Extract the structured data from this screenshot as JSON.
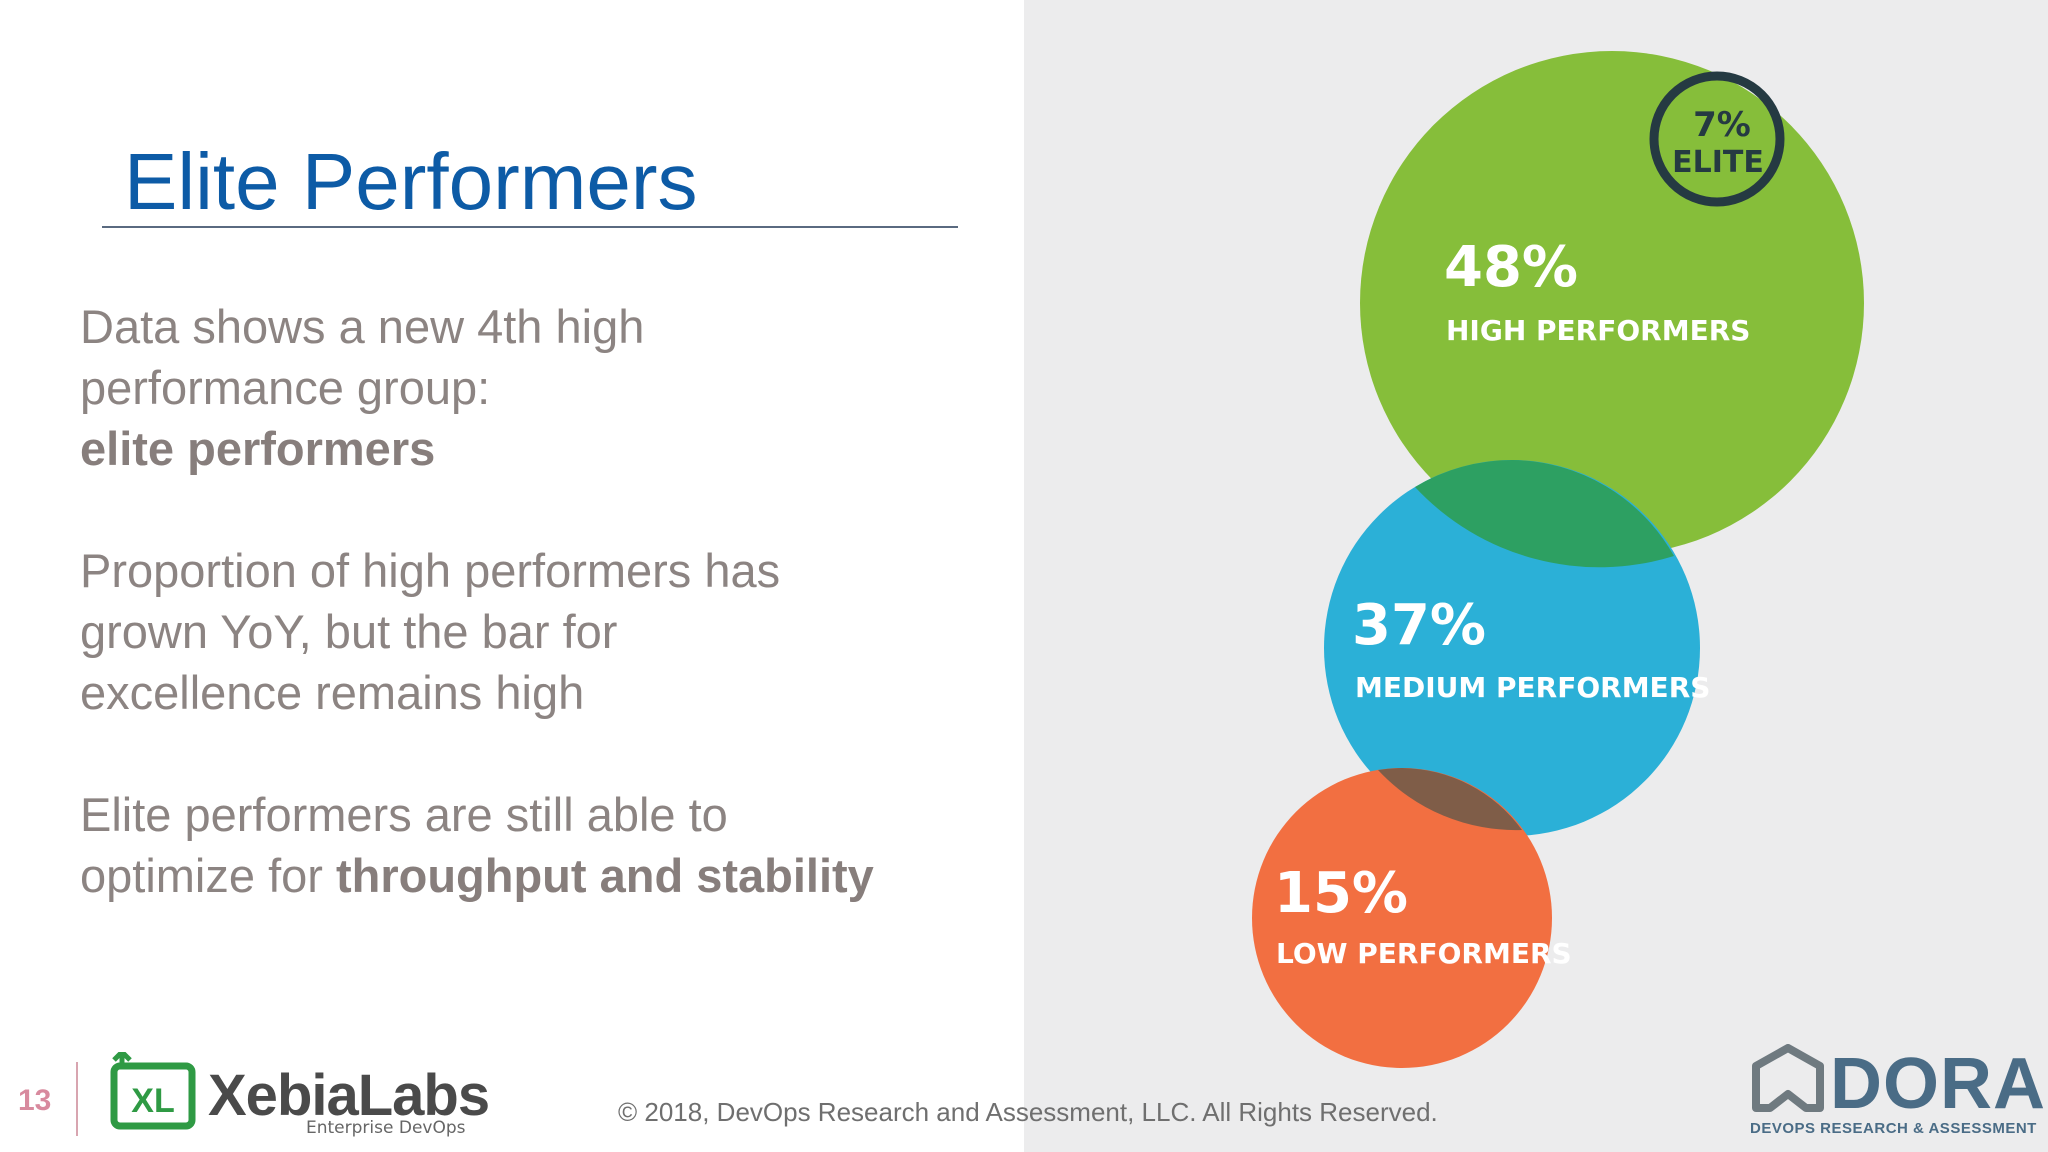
{
  "slide": {
    "title": "Elite Performers",
    "page_number": "13"
  },
  "body": {
    "p1_line1": "Data shows a new 4th high",
    "p1_line2": "performance group:",
    "p1_bold": "elite performers",
    "p2_line1": "Proportion of high performers has",
    "p2_line2": "grown YoY, but the bar for",
    "p2_line3": "excellence remains high",
    "p3_line1": "Elite performers are still able to",
    "p3_prefix": "optimize for ",
    "p3_bold": "throughput and stability"
  },
  "bubbles": {
    "elite": {
      "value": "7%",
      "label": "ELITE",
      "color": "#253a42"
    },
    "high": {
      "value": "48%",
      "label": "HIGH PERFORMERS",
      "color": "#86be3a"
    },
    "medium": {
      "value": "37%",
      "label": "MEDIUM PERFORMERS",
      "color": "#2bb0d7"
    },
    "low": {
      "value": "15%",
      "label": "LOW PERFORMERS",
      "color": "#f26f41"
    }
  },
  "footer": {
    "xl_logo_text": "XebiaLabs",
    "xl_subtitle": "Enterprise DevOps",
    "xl_mark": "XL",
    "copyright": "© 2018, DevOps Research and Assessment, LLC. All Rights Reserved.",
    "dora_logo_text": "DORA",
    "dora_subtitle": "DEVOPS RESEARCH & ASSESSMENT"
  }
}
